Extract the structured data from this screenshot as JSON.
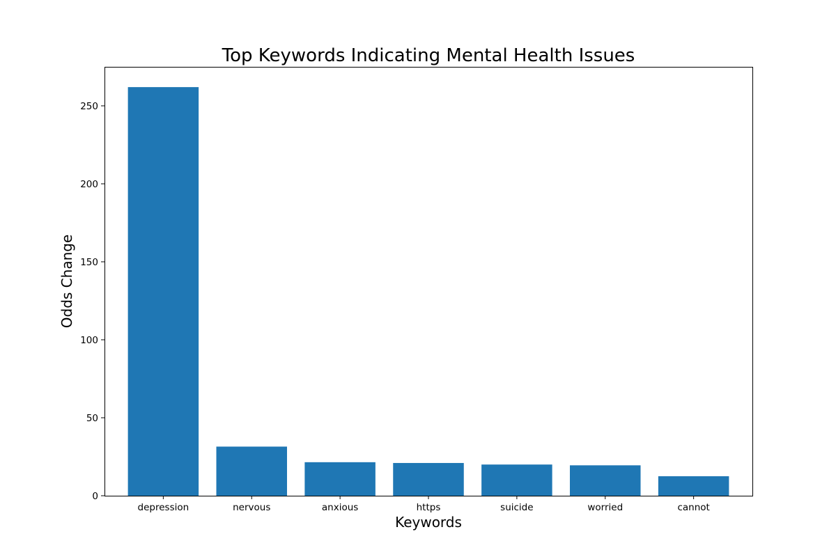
{
  "chart_data": {
    "type": "bar",
    "title": "Top Keywords Indicating Mental Health Issues",
    "xlabel": "Keywords",
    "ylabel": "Odds Change",
    "categories": [
      "depression",
      "nervous",
      "anxious",
      "https",
      "suicide",
      "worried",
      "cannot"
    ],
    "values": [
      262,
      31.5,
      21.5,
      21,
      20,
      19.5,
      12.5
    ],
    "ylim": [
      0,
      275
    ],
    "yticks": [
      0,
      50,
      100,
      150,
      200,
      250
    ],
    "grid": false,
    "bar_color": "#1f77b4"
  }
}
